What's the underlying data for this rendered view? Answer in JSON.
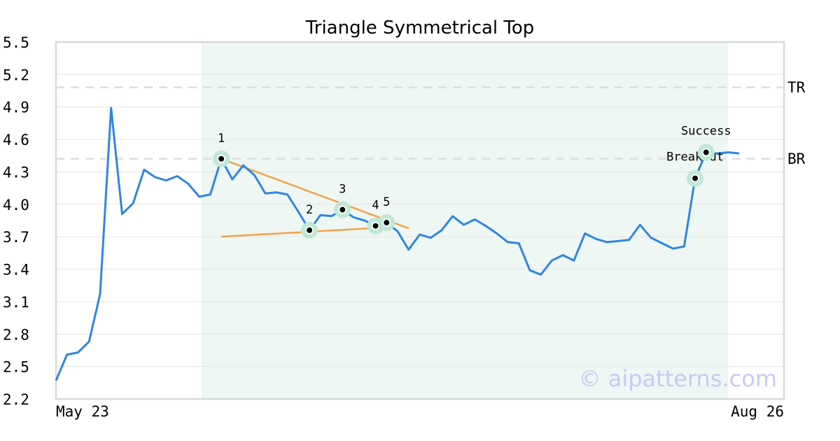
{
  "chart_data": {
    "type": "line",
    "title": "Triangle Symmetrical Top",
    "xlabel": "",
    "ylabel": "",
    "ylim": [
      2.2,
      5.5
    ],
    "yticks": [
      "5.5",
      "5.2",
      "4.9",
      "4.6",
      "4.3",
      "4.0",
      "3.7",
      "3.4",
      "3.1",
      "2.8",
      "2.5",
      "2.2"
    ],
    "x_tick_labels": [
      "May 23",
      "Aug 26"
    ],
    "grid": "horizontal",
    "series": [
      {
        "color": "#2f86e0",
        "values": [
          2.37,
          2.61,
          2.63,
          2.73,
          3.17,
          4.89,
          3.91,
          4.01,
          4.32,
          4.25,
          4.22,
          4.26,
          4.19,
          4.07,
          4.09,
          4.42,
          4.23,
          4.36,
          4.27,
          4.1,
          4.11,
          4.09,
          3.93,
          3.76,
          3.9,
          3.89,
          3.95,
          3.88,
          3.85,
          3.8,
          3.83,
          3.75,
          3.58,
          3.72,
          3.69,
          3.76,
          3.89,
          3.81,
          3.86,
          3.8,
          3.73,
          3.65,
          3.64,
          3.39,
          3.35,
          3.48,
          3.53,
          3.48,
          3.73,
          3.68,
          3.65,
          3.66,
          3.67,
          3.81,
          3.69,
          3.64,
          3.59,
          3.61,
          4.24,
          4.48,
          4.47,
          4.48,
          4.47
        ]
      }
    ],
    "pattern_region": {
      "start_index": 13,
      "end_index": 61,
      "color": "#eef7f3"
    },
    "reference_lines": [
      {
        "label": "TR",
        "value": 5.08
      },
      {
        "label": "BR",
        "value": 4.42
      }
    ],
    "trend_lines": [
      {
        "color": "#f5a04a",
        "from": {
          "index": 15,
          "value": 4.42
        },
        "to": {
          "index": 31,
          "value": 3.79
        }
      },
      {
        "color": "#f5a04a",
        "from": {
          "index": 15,
          "value": 3.7
        },
        "to": {
          "index": 29,
          "value": 3.8
        }
      }
    ],
    "pivot_points": [
      {
        "label": "1",
        "index": 15,
        "value": 4.42
      },
      {
        "label": "2",
        "index": 23,
        "value": 3.76
      },
      {
        "label": "3",
        "index": 26,
        "value": 3.95
      },
      {
        "label": "4",
        "index": 29,
        "value": 3.8
      },
      {
        "label": "5",
        "index": 30,
        "value": 3.83
      }
    ],
    "annotations": [
      {
        "label": "Breakout",
        "index": 58,
        "value": 4.24
      },
      {
        "label": "Success",
        "index": 59,
        "value": 4.48
      }
    ],
    "watermark": "© aipatterns.com"
  }
}
